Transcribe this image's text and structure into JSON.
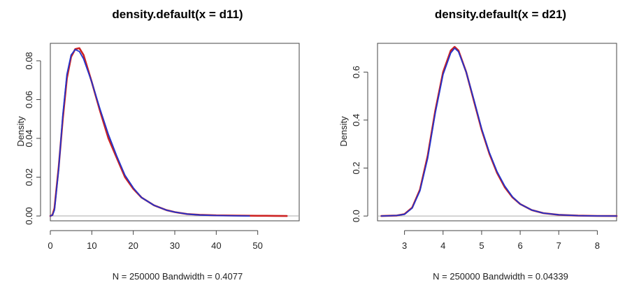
{
  "chart_data": [
    {
      "type": "line",
      "title": "density.default(x = d11)",
      "xlabel": "N = 250000   Bandwidth = 0.4077",
      "ylabel": "Density",
      "xlim": [
        0,
        60
      ],
      "ylim": [
        0,
        0.09
      ],
      "xticks": [
        "0",
        "10",
        "20",
        "30",
        "40",
        "50"
      ],
      "yticks": [
        "0.00",
        "0.02",
        "0.04",
        "0.06",
        "0.08"
      ],
      "grid": false,
      "series": [
        {
          "color": "#cc2222",
          "x": [
            0,
            0.5,
            1,
            2,
            3,
            4,
            5,
            6,
            7,
            8,
            10,
            12,
            14,
            16,
            18,
            20,
            22,
            25,
            28,
            30,
            33,
            36,
            40,
            45,
            50,
            54,
            57
          ],
          "y": [
            0,
            0.0005,
            0.004,
            0.025,
            0.05,
            0.071,
            0.082,
            0.086,
            0.0865,
            0.083,
            0.069,
            0.054,
            0.04,
            0.03,
            0.02,
            0.014,
            0.0095,
            0.0055,
            0.003,
            0.002,
            0.001,
            0.0006,
            0.0003,
            0.0002,
            0.0001,
            5e-05,
            0
          ]
        },
        {
          "color": "#2233cc",
          "x": [
            0,
            0.5,
            1,
            2,
            3,
            4,
            5,
            6,
            7,
            8,
            10,
            12,
            14,
            16,
            18,
            20,
            22,
            25,
            28,
            30,
            33,
            36,
            40,
            45,
            48
          ],
          "y": [
            0,
            0.0004,
            0.003,
            0.024,
            0.052,
            0.073,
            0.083,
            0.0858,
            0.0848,
            0.081,
            0.069,
            0.055,
            0.042,
            0.031,
            0.021,
            0.0145,
            0.0095,
            0.0055,
            0.003,
            0.002,
            0.001,
            0.0005,
            0.0002,
            5e-05,
            0
          ]
        }
      ]
    },
    {
      "type": "line",
      "title": "density.default(x = d21)",
      "xlabel": "N = 250000   Bandwidth = 0.04339",
      "ylabel": "Density",
      "xlim": [
        2.3,
        8.5
      ],
      "ylim": [
        0,
        0.72
      ],
      "xticks": [
        "3",
        "4",
        "5",
        "6",
        "7",
        "8"
      ],
      "yticks": [
        "0.0",
        "0.2",
        "0.4",
        "0.6"
      ],
      "grid": false,
      "series": [
        {
          "color": "#cc2222",
          "x": [
            2.4,
            2.8,
            3.0,
            3.2,
            3.4,
            3.6,
            3.8,
            4.0,
            4.2,
            4.3,
            4.4,
            4.6,
            4.8,
            5.0,
            5.2,
            5.4,
            5.6,
            5.8,
            6.0,
            6.3,
            6.6,
            7.0,
            7.5,
            8.0,
            8.5
          ],
          "y": [
            0.0,
            0.002,
            0.008,
            0.035,
            0.11,
            0.25,
            0.44,
            0.6,
            0.69,
            0.705,
            0.69,
            0.6,
            0.48,
            0.36,
            0.26,
            0.18,
            0.12,
            0.078,
            0.05,
            0.025,
            0.012,
            0.005,
            0.0015,
            0.0005,
            0.0
          ]
        },
        {
          "color": "#2233cc",
          "x": [
            2.4,
            2.8,
            3.0,
            3.2,
            3.4,
            3.6,
            3.8,
            4.0,
            4.2,
            4.3,
            4.4,
            4.6,
            4.8,
            5.0,
            5.2,
            5.4,
            5.6,
            5.8,
            6.0,
            6.3,
            6.6,
            7.0,
            7.5,
            8.0,
            8.5
          ],
          "y": [
            0.0,
            0.002,
            0.007,
            0.033,
            0.105,
            0.24,
            0.43,
            0.59,
            0.68,
            0.7,
            0.685,
            0.6,
            0.485,
            0.365,
            0.265,
            0.185,
            0.125,
            0.08,
            0.05,
            0.025,
            0.012,
            0.005,
            0.0015,
            0.0005,
            0.0
          ]
        }
      ]
    }
  ]
}
